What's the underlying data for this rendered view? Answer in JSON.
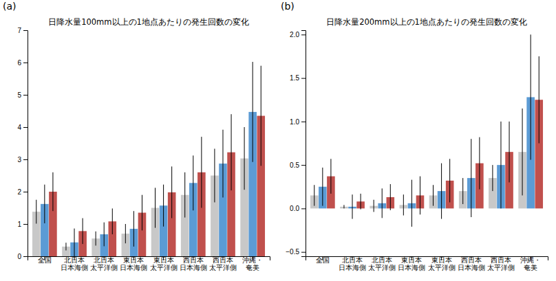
{
  "chart_data": [
    {
      "type": "bar",
      "title": "日降水量100mm以上の1地点あたりの発生回数の変化",
      "annotations": [
        "(a)"
      ],
      "categories": [
        "全国",
        "北日本\n日本海側",
        "北日本\n太平洋側",
        "東日本\n日本海側",
        "東日本\n太平洋側",
        "西日本\n日本海側",
        "西日本\n太平洋側",
        "沖縄・\n奄美"
      ],
      "series": [
        {
          "color": "#c8c8c8",
          "values": [
            1.38,
            0.3,
            0.55,
            0.7,
            1.5,
            1.9,
            2.5,
            3.03
          ],
          "errors": [
            0.37,
            0.12,
            0.22,
            0.3,
            0.62,
            0.7,
            0.83,
            0.97
          ]
        },
        {
          "color": "#5b9bd5",
          "values": [
            1.62,
            0.43,
            0.68,
            0.85,
            1.57,
            2.27,
            2.87,
            4.47
          ],
          "errors": [
            0.6,
            0.43,
            0.37,
            0.55,
            0.65,
            0.85,
            1.05,
            1.55
          ]
        },
        {
          "color": "#c0504d",
          "values": [
            2.0,
            0.78,
            1.08,
            1.35,
            1.98,
            2.6,
            3.22,
            4.35
          ],
          "errors": [
            0.6,
            0.4,
            0.4,
            0.55,
            0.8,
            1.1,
            1.18,
            1.55
          ]
        }
      ],
      "ylim": [
        0,
        7
      ],
      "yticks": [
        0,
        1,
        2,
        3,
        4,
        5,
        6,
        7
      ],
      "grid": false
    },
    {
      "type": "bar",
      "title": "日降水量200mm以上の1地点あたりの発生回数の変化",
      "annotations": [
        "(b)"
      ],
      "categories": [
        "全国",
        "北日本\n日本海側",
        "北日本\n太平洋側",
        "東日本\n日本海側",
        "東日本\n太平洋側",
        "西日本\n日本海側",
        "西日本\n太平洋側",
        "沖縄・\n奄美"
      ],
      "series": [
        {
          "color": "#c8c8c8",
          "values": [
            0.15,
            0.02,
            0.03,
            0.04,
            0.15,
            0.2,
            0.35,
            0.65
          ],
          "errors": [
            0.12,
            0.02,
            0.07,
            0.12,
            0.12,
            0.15,
            0.15,
            0.5
          ]
        },
        {
          "color": "#5b9bd5",
          "values": [
            0.25,
            0.02,
            0.06,
            0.06,
            0.2,
            0.35,
            0.5,
            1.28
          ],
          "errors": [
            0.22,
            0.14,
            0.17,
            0.27,
            0.32,
            0.45,
            0.5,
            0.72
          ]
        },
        {
          "color": "#c0504d",
          "values": [
            0.37,
            0.08,
            0.13,
            0.15,
            0.32,
            0.52,
            0.65,
            1.25
          ],
          "errors": [
            0.2,
            0.09,
            0.15,
            0.22,
            0.25,
            0.3,
            0.35,
            0.5
          ]
        }
      ],
      "ylim": [
        -0.55,
        2.05
      ],
      "yticks": [
        {
          "value": -0.5,
          "label": "−0.5"
        },
        {
          "value": 0,
          "label": "0.0"
        },
        0.5,
        {
          "value": 1,
          "label": "1.0"
        },
        1.5,
        {
          "value": 2,
          "label": "2.0"
        }
      ],
      "grid": false
    }
  ]
}
